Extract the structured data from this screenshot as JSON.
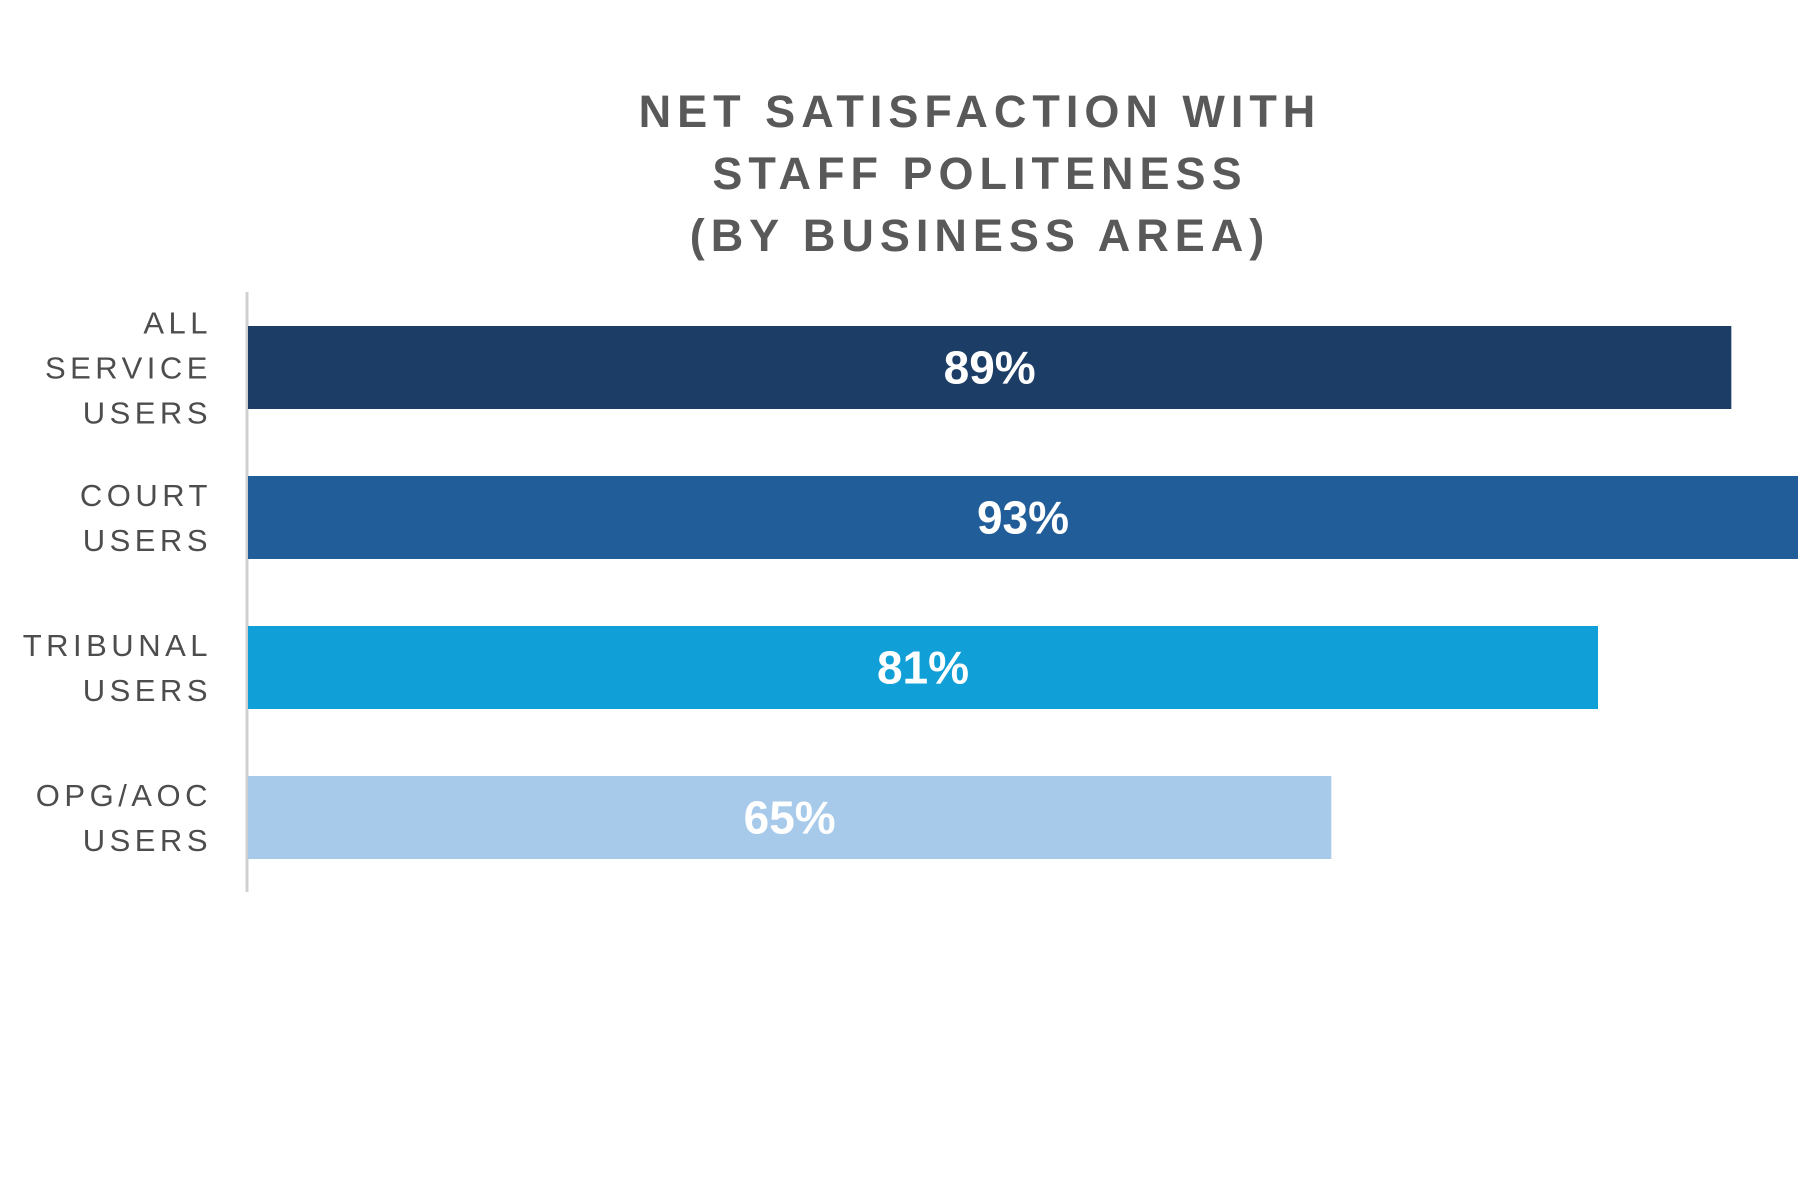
{
  "chart_data": {
    "type": "bar",
    "orientation": "horizontal",
    "title_lines": [
      "NET SATISFACTION WITH",
      "STAFF POLITENESS",
      "(BY BUSINESS AREA)"
    ],
    "categories": [
      [
        "ALL",
        "SERVICE",
        "USERS"
      ],
      [
        "COURT",
        "USERS"
      ],
      [
        "TRIBUNAL",
        "USERS"
      ],
      [
        "OPG/AOC",
        "USERS"
      ]
    ],
    "values": [
      89,
      93,
      81,
      65
    ],
    "value_labels": [
      "89%",
      "93%",
      "81%",
      "65%"
    ],
    "value_unit": "%",
    "colors": [
      "#1b3d66",
      "#215e99",
      "#109fd7",
      "#a8caea"
    ],
    "xlim": [
      0,
      93
    ],
    "grid": false,
    "legend": "none",
    "xlabel": "",
    "ylabel": ""
  }
}
